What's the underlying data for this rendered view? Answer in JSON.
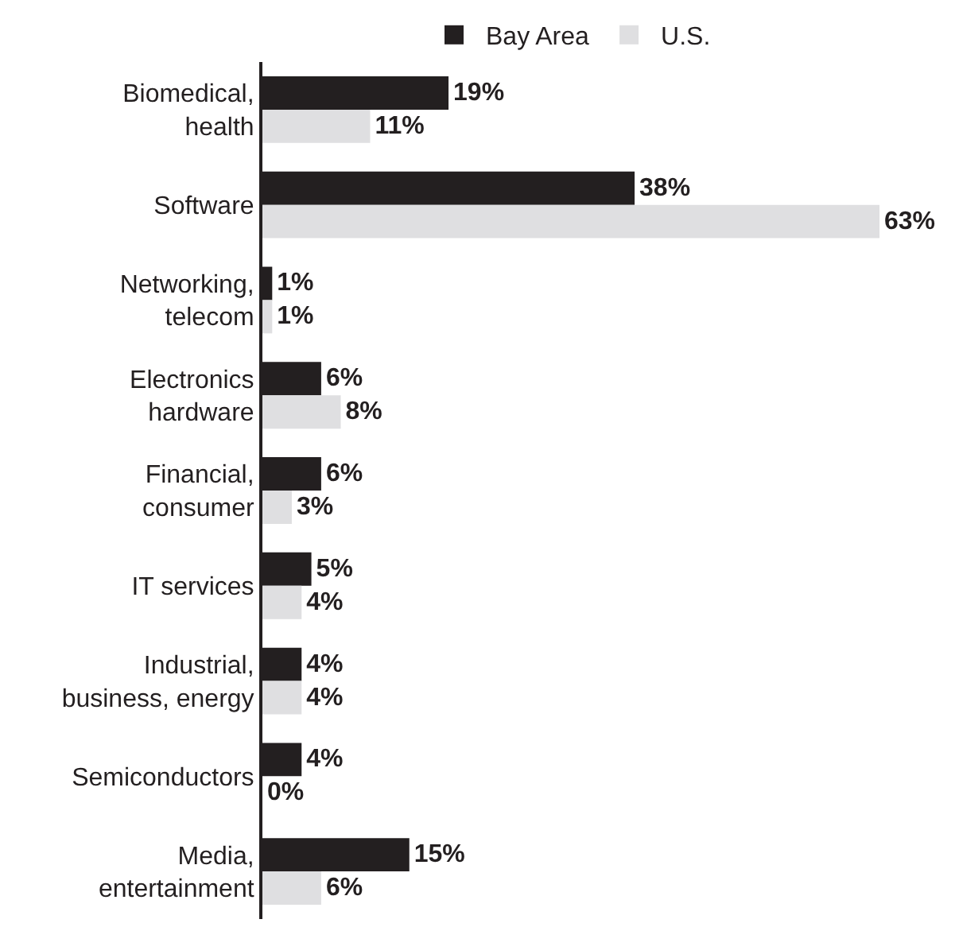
{
  "chart_data": {
    "type": "bar",
    "orientation": "horizontal",
    "categories": [
      "Biomedical,\nhealth",
      "Software",
      "Networking,\ntelecom",
      "Electronics\nhardware",
      "Financial,\nconsumer",
      "IT services",
      "Industrial,\nbusiness, energy",
      "Semiconductors",
      "Media,\nentertainment"
    ],
    "series": [
      {
        "name": "Bay Area",
        "color": "#231f20",
        "values": [
          19,
          38,
          1,
          6,
          6,
          5,
          4,
          4,
          15
        ],
        "value_labels": [
          "19%",
          "38%",
          "1%",
          "6%",
          "6%",
          "5%",
          "4%",
          "4%",
          "15%"
        ]
      },
      {
        "name": "U.S.",
        "color": "#dfdfe1",
        "values": [
          11,
          63,
          1,
          8,
          3,
          4,
          4,
          0,
          6
        ],
        "value_labels": [
          "11%",
          "63%",
          "1%",
          "8%",
          "3%",
          "4%",
          "4%",
          "0%",
          "6%"
        ]
      }
    ],
    "xlim": [
      0,
      63
    ],
    "tick_labels": "y",
    "grid": false,
    "legend": "top"
  }
}
